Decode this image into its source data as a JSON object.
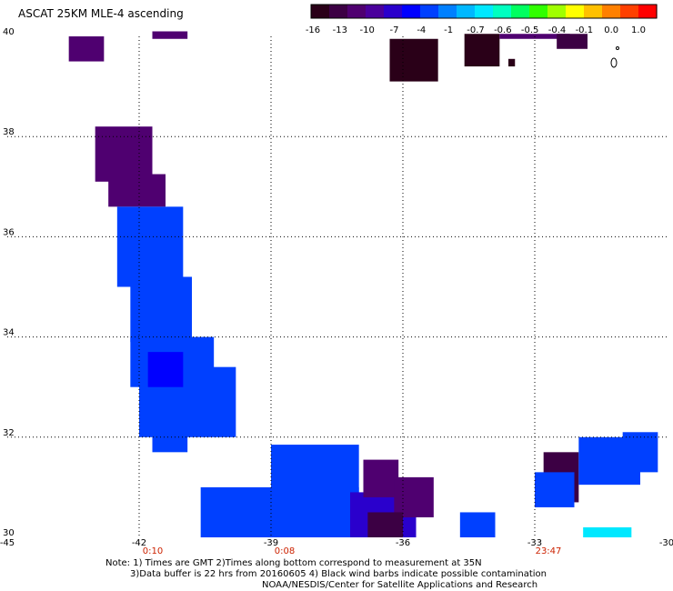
{
  "title": "ASCAT 25KM MLE-4 ascending",
  "colorbar": {
    "colors": [
      "#2a0018",
      "#3c0044",
      "#4f0070",
      "#4a009c",
      "#2a00cc",
      "#0000ff",
      "#0040ff",
      "#0080ff",
      "#00b8ff",
      "#00e8ff",
      "#00ffc0",
      "#00ff60",
      "#30ff00",
      "#a0ff00",
      "#ffff00",
      "#ffc000",
      "#ff8000",
      "#ff4000",
      "#ff0000"
    ],
    "labels": [
      "-16",
      "-13",
      "-10",
      "-7",
      "-4",
      "-1",
      "-0.7",
      "-0.6",
      "-0.5",
      "-0.4",
      "-0.1",
      "0.0",
      "1.0"
    ]
  },
  "y_axis_labels": [
    {
      "text": "40",
      "value": 40
    },
    {
      "text": "38",
      "value": 38
    },
    {
      "text": "36",
      "value": 36
    },
    {
      "text": "34",
      "value": 34
    },
    {
      "text": "32",
      "value": 32
    },
    {
      "text": "30",
      "value": 30
    }
  ],
  "x_axis_labels": [
    {
      "text": "-45",
      "value": -45
    },
    {
      "text": "-42",
      "value": -42
    },
    {
      "text": "-39",
      "value": -39
    },
    {
      "text": "-36",
      "value": -36
    },
    {
      "text": "-33",
      "value": -33
    },
    {
      "text": "-30",
      "value": -30
    }
  ],
  "time_labels": [
    {
      "text": "0:10",
      "lon": -42
    },
    {
      "text": "0:08",
      "lon": -39
    },
    {
      "text": "23:47",
      "lon": -33
    }
  ],
  "notes": {
    "line1": "Note: 1) Times are GMT 2)Times along bottom correspond to measurement at 35N",
    "line2": "3)Data buffer is 22 hrs from 20160605 4) Black wind barbs indicate possible contamination",
    "line3": "NOAA/NESDIS/Center for Satellite Applications and Research"
  },
  "data_cells": [
    {
      "lon0": -43.6,
      "lon1": -42.8,
      "lat0": 39.5,
      "lat1": 40.0,
      "color": "#4f0070"
    },
    {
      "lon0": -41.7,
      "lon1": -40.9,
      "lat0": 39.95,
      "lat1": 40.1,
      "color": "#4f0070"
    },
    {
      "lon0": -36.3,
      "lon1": -35.2,
      "lat0": 39.1,
      "lat1": 39.95,
      "color": "#2a0018"
    },
    {
      "lon0": -34.6,
      "lon1": -33.8,
      "lat0": 39.4,
      "lat1": 40.05,
      "color": "#2a0018"
    },
    {
      "lon0": -33.6,
      "lon1": -33.45,
      "lat0": 39.4,
      "lat1": 39.55,
      "color": "#2a0018"
    },
    {
      "lon0": -33.8,
      "lon1": -32.2,
      "lat0": 39.95,
      "lat1": 40.05,
      "color": "#4f0070"
    },
    {
      "lon0": -32.5,
      "lon1": -31.8,
      "lat0": 39.75,
      "lat1": 40.05,
      "color": "#3c0044"
    },
    {
      "lon0": -43.0,
      "lon1": -41.7,
      "lat0": 37.1,
      "lat1": 38.2,
      "color": "#4f0070"
    },
    {
      "lon0": -42.7,
      "lon1": -41.4,
      "lat0": 36.6,
      "lat1": 37.25,
      "color": "#4f0070"
    },
    {
      "lon0": -42.5,
      "lon1": -41.0,
      "lat0": 35.0,
      "lat1": 36.6,
      "color": "#0040ff"
    },
    {
      "lon0": -42.2,
      "lon1": -40.8,
      "lat0": 33.9,
      "lat1": 35.2,
      "color": "#0040ff"
    },
    {
      "lon0": -42.2,
      "lon1": -40.3,
      "lat0": 33.0,
      "lat1": 34.0,
      "color": "#0040ff"
    },
    {
      "lon0": -42.0,
      "lon1": -39.8,
      "lat0": 32.0,
      "lat1": 33.4,
      "color": "#0040ff"
    },
    {
      "lon0": -41.8,
      "lon1": -41.0,
      "lat0": 33.0,
      "lat1": 33.7,
      "color": "#0000ff"
    },
    {
      "lon0": -41.7,
      "lon1": -40.9,
      "lat0": 31.7,
      "lat1": 32.1,
      "color": "#0040ff"
    },
    {
      "lon0": -39.0,
      "lon1": -37.0,
      "lat0": 30.9,
      "lat1": 31.85,
      "color": "#0040ff"
    },
    {
      "lon0": -40.6,
      "lon1": -37.0,
      "lat0": 30.0,
      "lat1": 31.0,
      "color": "#0040ff"
    },
    {
      "lon0": -37.2,
      "lon1": -35.7,
      "lat0": 30.0,
      "lat1": 30.9,
      "color": "#2a00cc"
    },
    {
      "lon0": -36.9,
      "lon1": -36.1,
      "lat0": 30.8,
      "lat1": 31.55,
      "color": "#4f0070"
    },
    {
      "lon0": -36.2,
      "lon1": -35.3,
      "lat0": 30.4,
      "lat1": 31.2,
      "color": "#4f0070"
    },
    {
      "lon0": -36.8,
      "lon1": -36.0,
      "lat0": 30.0,
      "lat1": 30.5,
      "color": "#3c0044"
    },
    {
      "lon0": -34.7,
      "lon1": -33.9,
      "lat0": 30.0,
      "lat1": 30.5,
      "color": "#0040ff"
    },
    {
      "lon0": -32.8,
      "lon1": -32.0,
      "lat0": 30.7,
      "lat1": 31.7,
      "color": "#3c0044"
    },
    {
      "lon0": -33.0,
      "lon1": -32.1,
      "lat0": 30.6,
      "lat1": 31.3,
      "color": "#0040ff"
    },
    {
      "lon0": -32.0,
      "lon1": -30.6,
      "lat0": 31.05,
      "lat1": 32.0,
      "color": "#0040ff"
    },
    {
      "lon0": -31.0,
      "lon1": -30.2,
      "lat0": 31.3,
      "lat1": 32.1,
      "color": "#0040ff"
    },
    {
      "lon0": -31.9,
      "lon1": -30.8,
      "lat0": 30.0,
      "lat1": 30.2,
      "color": "#00e8ff"
    }
  ]
}
